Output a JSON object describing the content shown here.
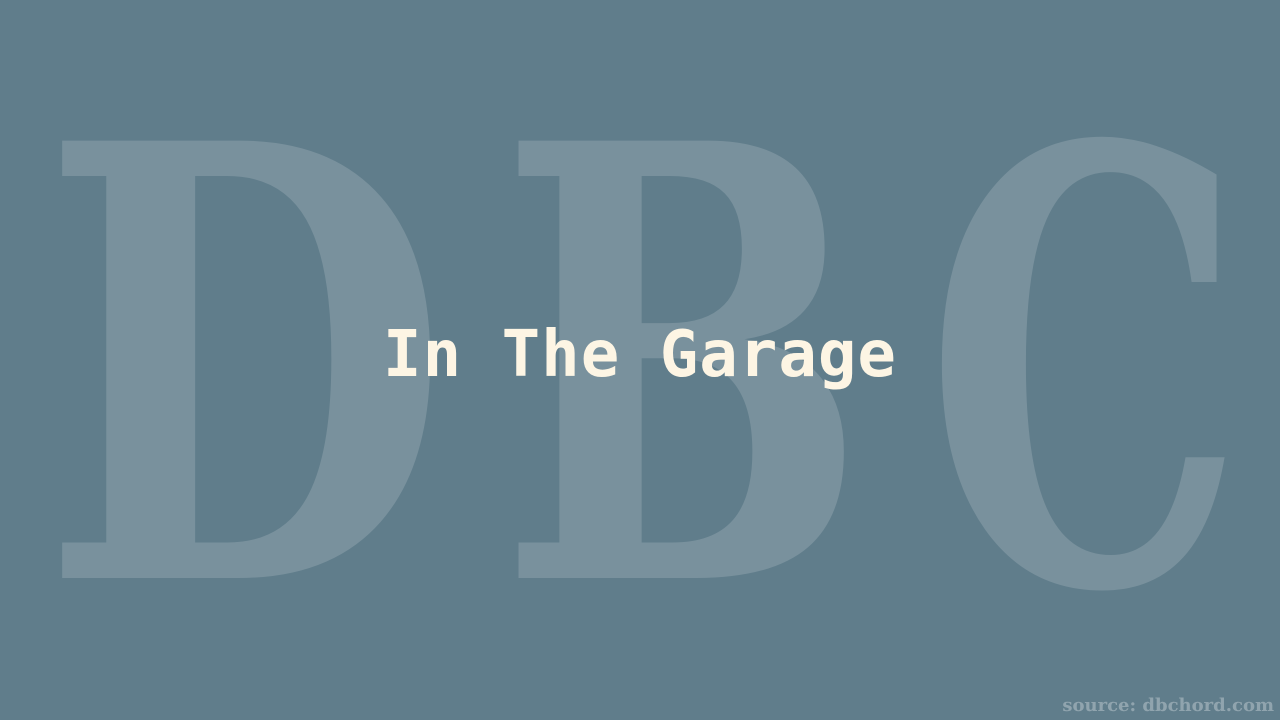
{
  "background_color": "#607d8b",
  "watermark": {
    "letters": [
      "D",
      "B",
      "C"
    ],
    "color": "#ffffff"
  },
  "title": "In The Garage",
  "title_color": "#fdf5e4",
  "source": "source: dbchord.com"
}
